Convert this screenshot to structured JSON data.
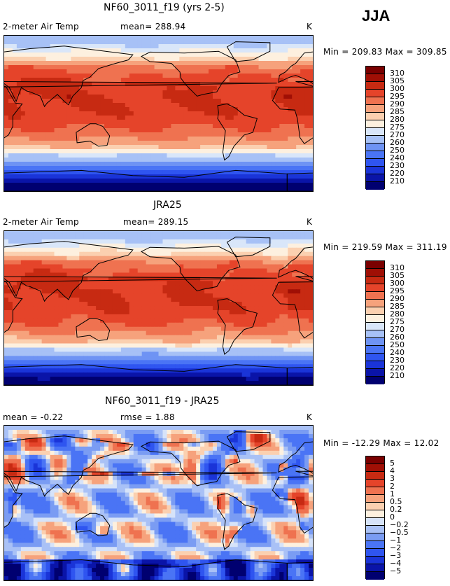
{
  "season": "JJA",
  "panels": [
    {
      "id": "model",
      "title": "NF60_3011_f19 (yrs 2-5)",
      "variable": "2-meter Air Temp",
      "stat1": "mean= 288.94",
      "stat2": "",
      "units": "K",
      "minmax": "Min = 209.83  Max = 309.85",
      "field": "absolute"
    },
    {
      "id": "obs",
      "title": "JRA25",
      "variable": "2-meter Air Temp",
      "stat1": "mean= 289.15",
      "stat2": "",
      "units": "K",
      "minmax": "Min = 219.59  Max = 311.19",
      "field": "absolute"
    },
    {
      "id": "diff",
      "title": "NF60_3011_f19 - JRA25",
      "variable": "",
      "stat1": "mean =   -0.22",
      "stat2": "rmse =    1.88",
      "units": "K",
      "minmax": "Min = -12.29  Max =  12.02",
      "field": "difference"
    }
  ],
  "chart_data": [
    {
      "type": "heatmap",
      "title": "NF60_3011_f19 (yrs 2-5)",
      "variable": "2-meter Air Temp",
      "units": "K",
      "mean": 288.94,
      "min": 209.83,
      "max": 309.85,
      "levels": [
        210,
        220,
        230,
        240,
        250,
        260,
        270,
        275,
        280,
        285,
        290,
        295,
        300,
        305,
        310
      ],
      "colors": [
        "#000070",
        "#0a14a8",
        "#1a34d8",
        "#2f55f0",
        "#4a74f5",
        "#6e93f4",
        "#a7c1f6",
        "#d9e6f9",
        "#fdf0df",
        "#fbd0b0",
        "#f6a27c",
        "#ef7250",
        "#e5442a",
        "#c72a12",
        "#a00f05",
        "#7a0000"
      ]
    },
    {
      "type": "heatmap",
      "title": "JRA25",
      "variable": "2-meter Air Temp",
      "units": "K",
      "mean": 289.15,
      "min": 219.59,
      "max": 311.19,
      "levels": [
        210,
        220,
        230,
        240,
        250,
        260,
        270,
        275,
        280,
        285,
        290,
        295,
        300,
        305,
        310
      ],
      "colors": [
        "#000070",
        "#0a14a8",
        "#1a34d8",
        "#2f55f0",
        "#4a74f5",
        "#6e93f4",
        "#a7c1f6",
        "#d9e6f9",
        "#fdf0df",
        "#fbd0b0",
        "#f6a27c",
        "#ef7250",
        "#e5442a",
        "#c72a12",
        "#a00f05",
        "#7a0000"
      ]
    },
    {
      "type": "heatmap",
      "title": "NF60_3011_f19 - JRA25",
      "units": "K",
      "mean": -0.22,
      "rmse": 1.88,
      "min": -12.29,
      "max": 12.02,
      "levels": [
        "-5",
        "-4",
        "-3",
        "-2",
        "-1",
        "-0.5",
        "-0.2",
        "0",
        "0.2",
        "0.5",
        "1",
        "2",
        "3",
        "4",
        "5"
      ],
      "colors": [
        "#000070",
        "#0a14a8",
        "#1a34d8",
        "#2f55f0",
        "#4a74f5",
        "#7a9cf3",
        "#a9c1f6",
        "#d6e3f9",
        "#fdf0df",
        "#fbd0b0",
        "#f6a27c",
        "#ef7250",
        "#e5442a",
        "#c72a12",
        "#a00f05",
        "#7a0000"
      ]
    }
  ]
}
